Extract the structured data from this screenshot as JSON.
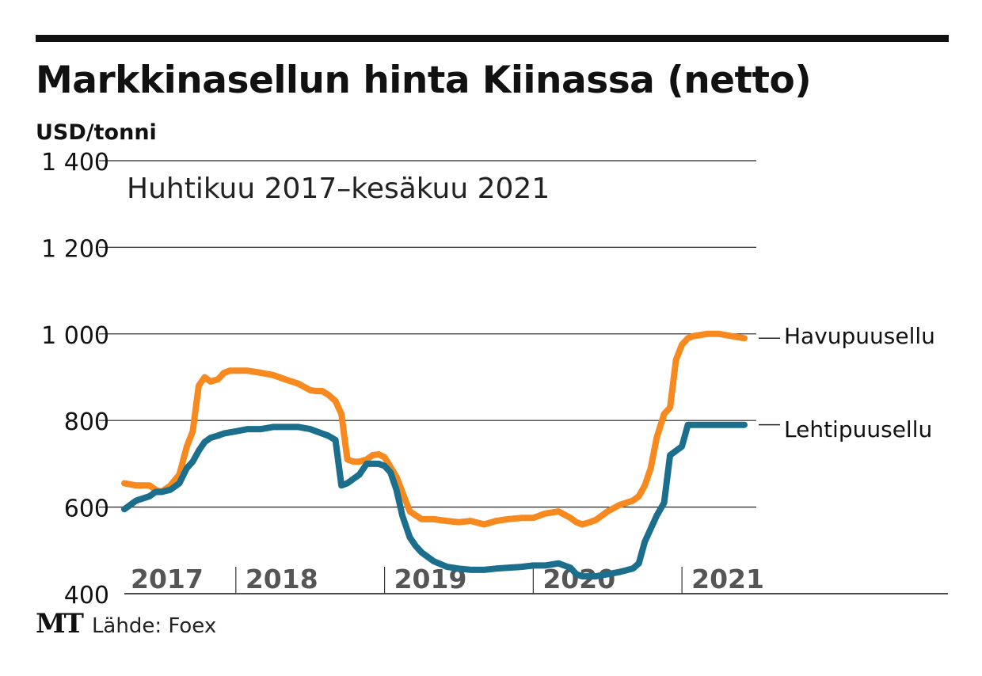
{
  "header": {
    "title": "Markkinasellun hinta Kiinassa (netto)",
    "unit": "USD/tonni"
  },
  "footer": {
    "logo": "MT",
    "source": "Lähde: Foex"
  },
  "chart_data": {
    "type": "line",
    "title": "Markkinasellun hinta Kiinassa (netto)",
    "subtitle": "Huhtikuu 2017–kesäkuu 2021",
    "ylabel": "USD/tonni",
    "xlabel": "",
    "xlim": [
      2017.25,
      2021.5
    ],
    "ylim": [
      400,
      1400
    ],
    "yticks": [
      400,
      600,
      800,
      1000,
      1200,
      1400
    ],
    "ytick_labels": [
      "400",
      "600",
      "800",
      "1 000",
      "1 200",
      "1 400"
    ],
    "year_labels": [
      {
        "year": 2017,
        "label": "2017"
      },
      {
        "year": 2018,
        "label": "2018"
      },
      {
        "year": 2019,
        "label": "2019"
      },
      {
        "year": 2020,
        "label": "2020"
      },
      {
        "year": 2021,
        "label": "2021"
      }
    ],
    "year_dividers": [
      2018,
      2019,
      2020,
      2021
    ],
    "grid": true,
    "legend": "direct labels at right end of lines",
    "series": [
      {
        "name": "Havupuusellu",
        "color": "#f7891e",
        "x": [
          2017.25,
          2017.33,
          2017.42,
          2017.46,
          2017.5,
          2017.56,
          2017.62,
          2017.67,
          2017.71,
          2017.75,
          2017.79,
          2017.83,
          2017.88,
          2017.92,
          2017.96,
          2018.0,
          2018.04,
          2018.08,
          2018.17,
          2018.25,
          2018.33,
          2018.42,
          2018.5,
          2018.54,
          2018.58,
          2018.62,
          2018.67,
          2018.71,
          2018.75,
          2018.79,
          2018.83,
          2018.88,
          2018.92,
          2018.96,
          2019.0,
          2019.08,
          2019.17,
          2019.25,
          2019.29,
          2019.33,
          2019.42,
          2019.5,
          2019.58,
          2019.67,
          2019.75,
          2019.83,
          2019.92,
          2020.0,
          2020.08,
          2020.17,
          2020.25,
          2020.29,
          2020.33,
          2020.38,
          2020.42,
          2020.5,
          2020.58,
          2020.67,
          2020.71,
          2020.75,
          2020.79,
          2020.83,
          2020.88,
          2020.92,
          2020.96,
          2021.0,
          2021.04,
          2021.08,
          2021.17,
          2021.25,
          2021.33,
          2021.42
        ],
        "values": [
          655,
          650,
          650,
          640,
          635,
          650,
          675,
          740,
          775,
          880,
          900,
          890,
          895,
          910,
          915,
          915,
          915,
          915,
          910,
          905,
          895,
          885,
          870,
          868,
          868,
          860,
          845,
          815,
          710,
          705,
          705,
          710,
          720,
          722,
          715,
          670,
          590,
          572,
          572,
          572,
          568,
          565,
          568,
          560,
          568,
          572,
          575,
          575,
          585,
          590,
          575,
          565,
          560,
          565,
          570,
          590,
          605,
          615,
          625,
          650,
          690,
          760,
          815,
          830,
          940,
          975,
          990,
          995,
          1000,
          1000,
          995,
          990
        ]
      },
      {
        "name": "Lehtipuusellu",
        "color": "#1b6e8c",
        "x": [
          2017.25,
          2017.33,
          2017.42,
          2017.46,
          2017.5,
          2017.56,
          2017.62,
          2017.67,
          2017.71,
          2017.75,
          2017.79,
          2017.83,
          2017.88,
          2017.92,
          2018.0,
          2018.08,
          2018.17,
          2018.25,
          2018.33,
          2018.42,
          2018.5,
          2018.58,
          2018.62,
          2018.67,
          2018.71,
          2018.75,
          2018.79,
          2018.83,
          2018.88,
          2018.92,
          2018.96,
          2019.0,
          2019.04,
          2019.08,
          2019.12,
          2019.17,
          2019.21,
          2019.25,
          2019.33,
          2019.42,
          2019.5,
          2019.58,
          2019.67,
          2019.75,
          2019.83,
          2019.92,
          2020.0,
          2020.08,
          2020.17,
          2020.25,
          2020.29,
          2020.33,
          2020.42,
          2020.5,
          2020.58,
          2020.67,
          2020.71,
          2020.75,
          2020.79,
          2020.83,
          2020.88,
          2020.92,
          2020.96,
          2021.0,
          2021.04,
          2021.08,
          2021.17,
          2021.25,
          2021.33,
          2021.42
        ],
        "values": [
          595,
          615,
          625,
          635,
          635,
          640,
          655,
          690,
          705,
          730,
          750,
          760,
          765,
          770,
          775,
          780,
          780,
          785,
          785,
          785,
          780,
          770,
          765,
          755,
          650,
          655,
          665,
          675,
          700,
          700,
          700,
          695,
          680,
          640,
          580,
          530,
          510,
          495,
          475,
          462,
          458,
          455,
          455,
          458,
          460,
          462,
          465,
          465,
          470,
          460,
          445,
          440,
          440,
          445,
          450,
          458,
          470,
          520,
          550,
          580,
          610,
          720,
          730,
          740,
          790,
          790,
          790,
          790,
          790,
          790
        ]
      }
    ]
  }
}
